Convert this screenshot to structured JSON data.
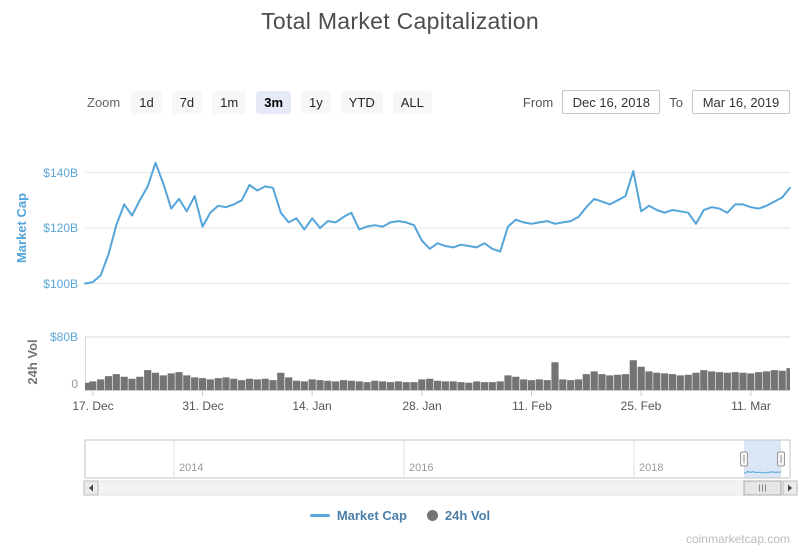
{
  "title": "Total Market Capitalization",
  "controls": {
    "zoom_label": "Zoom",
    "zoom_buttons": [
      "1d",
      "7d",
      "1m",
      "3m",
      "1y",
      "YTD",
      "ALL"
    ],
    "zoom_selected": "3m",
    "from_label": "From",
    "from_value": "Dec 16, 2018",
    "to_label": "To",
    "to_value": "Mar 16, 2019"
  },
  "main_chart": {
    "y_axis_title": "Market Cap",
    "y_ticks": [
      "$140B",
      "$120B",
      "$100B"
    ]
  },
  "volume_chart": {
    "y_axis_title": "24h Vol",
    "y_ticks": [
      "$80B",
      "0"
    ]
  },
  "x_axis": {
    "ticks": [
      "17. Dec",
      "31. Dec",
      "14. Jan",
      "28. Jan",
      "11. Feb",
      "25. Feb",
      "11. Mar"
    ]
  },
  "navigator": {
    "year_labels": [
      "2014",
      "2016",
      "2018"
    ]
  },
  "legend": [
    {
      "label": "Market Cap",
      "color": "#55a5da"
    },
    {
      "label": "24h Vol",
      "color": "#747474"
    }
  ],
  "watermark": "coinmarketcap.com",
  "colors": {
    "market_cap_line": "#55a5da",
    "volume_fill": "#747474",
    "axis_label_blue": "#5aa7d8",
    "selected_button_bg": "#e6e9f7",
    "navigator_mask": "#6b9ddb"
  },
  "chart_data": {
    "type": "line",
    "title": "Total Market Capitalization",
    "x_unit": "day",
    "x_start": "2018-12-16",
    "x_end": "2019-03-16",
    "x_tick_labels": [
      "17. Dec",
      "31. Dec",
      "14. Jan",
      "28. Jan",
      "11. Feb",
      "25. Feb",
      "11. Mar"
    ],
    "navigator_years": [
      "2014",
      "2016",
      "2018"
    ],
    "legend_position": "bottom",
    "series": [
      {
        "name": "Market Cap",
        "type": "line",
        "unit": "USD billions",
        "color": "#55a5da",
        "ylim": [
          95,
          150
        ],
        "y_gridlines": [
          100,
          120,
          140
        ],
        "y_tick_labels": [
          "$100B",
          "$120B",
          "$140B"
        ],
        "values": [
          100,
          100.5,
          103,
          110.5,
          121,
          128.5,
          124.5,
          130,
          135,
          143.5,
          136,
          127,
          130.5,
          126,
          131.5,
          120.5,
          125.5,
          128,
          127.5,
          128.5,
          130,
          135.5,
          133.5,
          135,
          134.5,
          125.5,
          122,
          123.5,
          119.5,
          123.5,
          120,
          122.5,
          122,
          124,
          125.5,
          119.5,
          120.5,
          121,
          120.5,
          122,
          122.5,
          122,
          121,
          115.5,
          112.5,
          114.5,
          113.5,
          113,
          114,
          113.5,
          113,
          114.5,
          112.5,
          111.5,
          120.5,
          123,
          122,
          121.5,
          122,
          122.5,
          121.5,
          122,
          122.5,
          124,
          127.5,
          130.5,
          129.5,
          128.5,
          130,
          131.5,
          140.5,
          126,
          128,
          126.5,
          125.5,
          126.5,
          126,
          125.5,
          121.5,
          126.5,
          127.5,
          127,
          125.5,
          128.5,
          128.5,
          127.5,
          127,
          128,
          129.5,
          131,
          134.5
        ]
      },
      {
        "name": "24h Vol",
        "type": "column",
        "unit": "USD billions",
        "color": "#747474",
        "ylim": [
          0,
          80
        ],
        "y_tick_labels": [
          "0",
          "$80B"
        ],
        "values": [
          11,
          13,
          16,
          21,
          24,
          20,
          17,
          20,
          30,
          26,
          22,
          25,
          27,
          22,
          19,
          18,
          16,
          18,
          19,
          17,
          15,
          17,
          16,
          17,
          15,
          26,
          19,
          14,
          13,
          16,
          15,
          14,
          13,
          15,
          14,
          13,
          12,
          14,
          13,
          12,
          13,
          12,
          12,
          16,
          17,
          14,
          13,
          13,
          12,
          11,
          13,
          12,
          12,
          13,
          22,
          20,
          16,
          15,
          16,
          15,
          42,
          16,
          15,
          16,
          24,
          28,
          24,
          22,
          23,
          24,
          45,
          35,
          28,
          26,
          25,
          24,
          22,
          23,
          26,
          30,
          28,
          27,
          26,
          27,
          26,
          25,
          27,
          28,
          30,
          29,
          33
        ]
      }
    ]
  }
}
